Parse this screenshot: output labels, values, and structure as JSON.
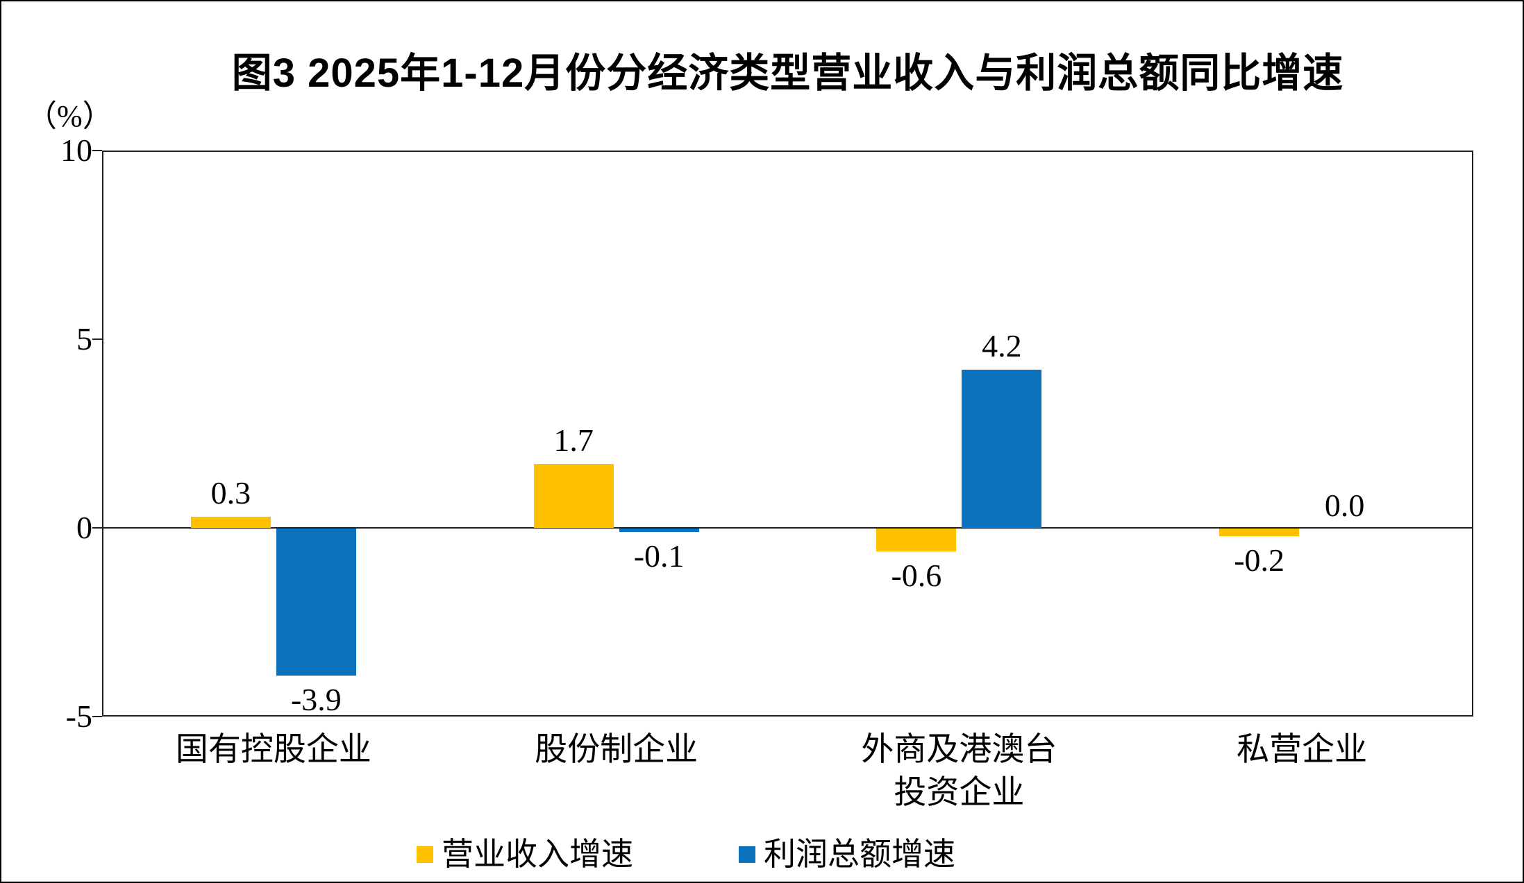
{
  "figure": {
    "title": "图3  2025年1-12月份分经济类型营业收入与利润总额同比增速",
    "unit_label": "（%）"
  },
  "chart_data": {
    "type": "bar",
    "title": "图3  2025年1-12月份分经济类型营业收入与利润总额同比增速",
    "unit": "%",
    "categories": [
      "国有控股企业",
      "股份制企业",
      "外商及港澳台\n投资企业",
      "私营企业"
    ],
    "series": [
      {
        "name": "营业收入增速",
        "color": "#FFC000",
        "values": [
          0.3,
          1.7,
          -0.6,
          -0.2
        ]
      },
      {
        "name": "利润总额增速",
        "color": "#0B72BE",
        "values": [
          -3.9,
          -0.1,
          4.2,
          0.0
        ]
      }
    ],
    "ylim": [
      -5,
      10
    ],
    "yticks": [
      10,
      5,
      0,
      -5
    ],
    "grid": false,
    "data_labels": true,
    "legend_position": "bottom",
    "axis_color": "#1f1f1f"
  }
}
